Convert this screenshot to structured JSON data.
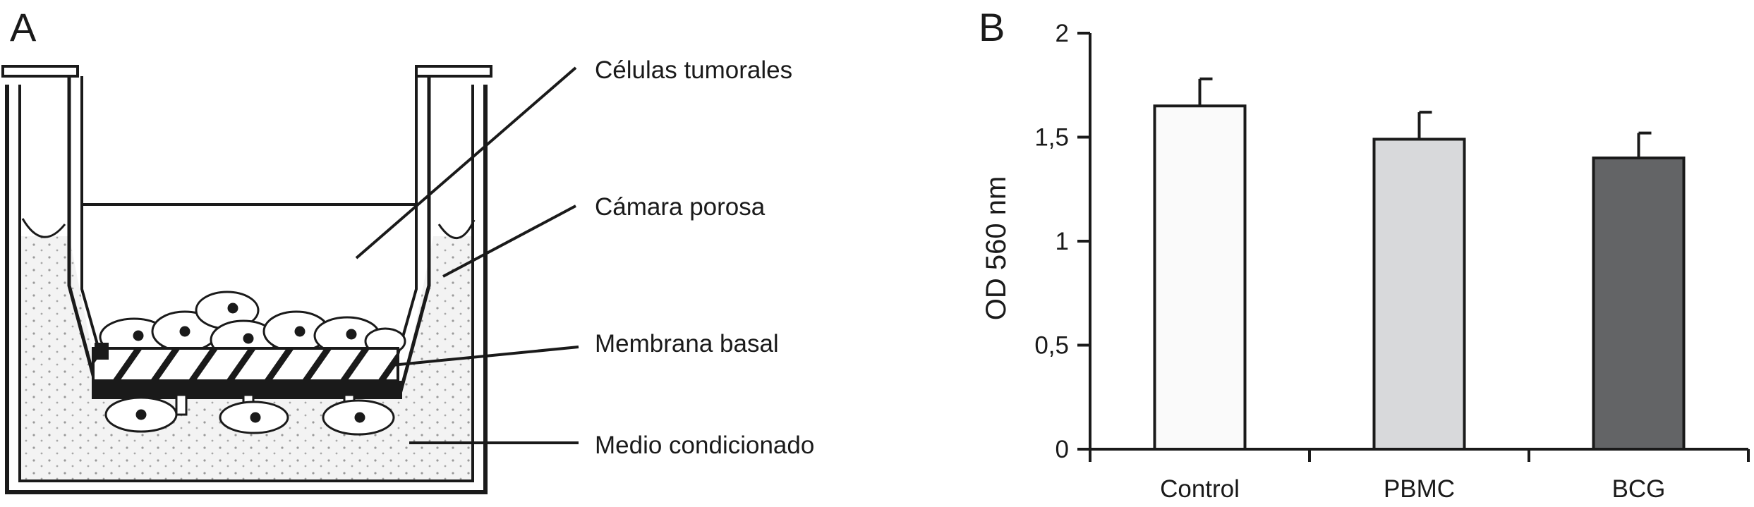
{
  "panel_a": {
    "letter": "A",
    "labels": [
      "Células tumorales",
      "Cámara porosa",
      "Membrana basal",
      "Medio condicionado"
    ]
  },
  "panel_b": {
    "letter": "B"
  },
  "chart_data": {
    "type": "bar",
    "categories": [
      "Control",
      "PBMC",
      "BCG"
    ],
    "values": [
      1.65,
      1.49,
      1.4
    ],
    "errors": [
      0.13,
      0.13,
      0.12
    ],
    "bar_colors": [
      "#fafafa",
      "#d8d9db",
      "#636466"
    ],
    "title": "",
    "xlabel": "",
    "ylabel": "OD 560 nm",
    "ylim": [
      0,
      2
    ],
    "yticks": [
      0,
      0.5,
      1,
      1.5,
      2
    ],
    "ytick_labels": [
      "0",
      "0,5",
      "1",
      "1,5",
      "2"
    ],
    "grid": false
  }
}
